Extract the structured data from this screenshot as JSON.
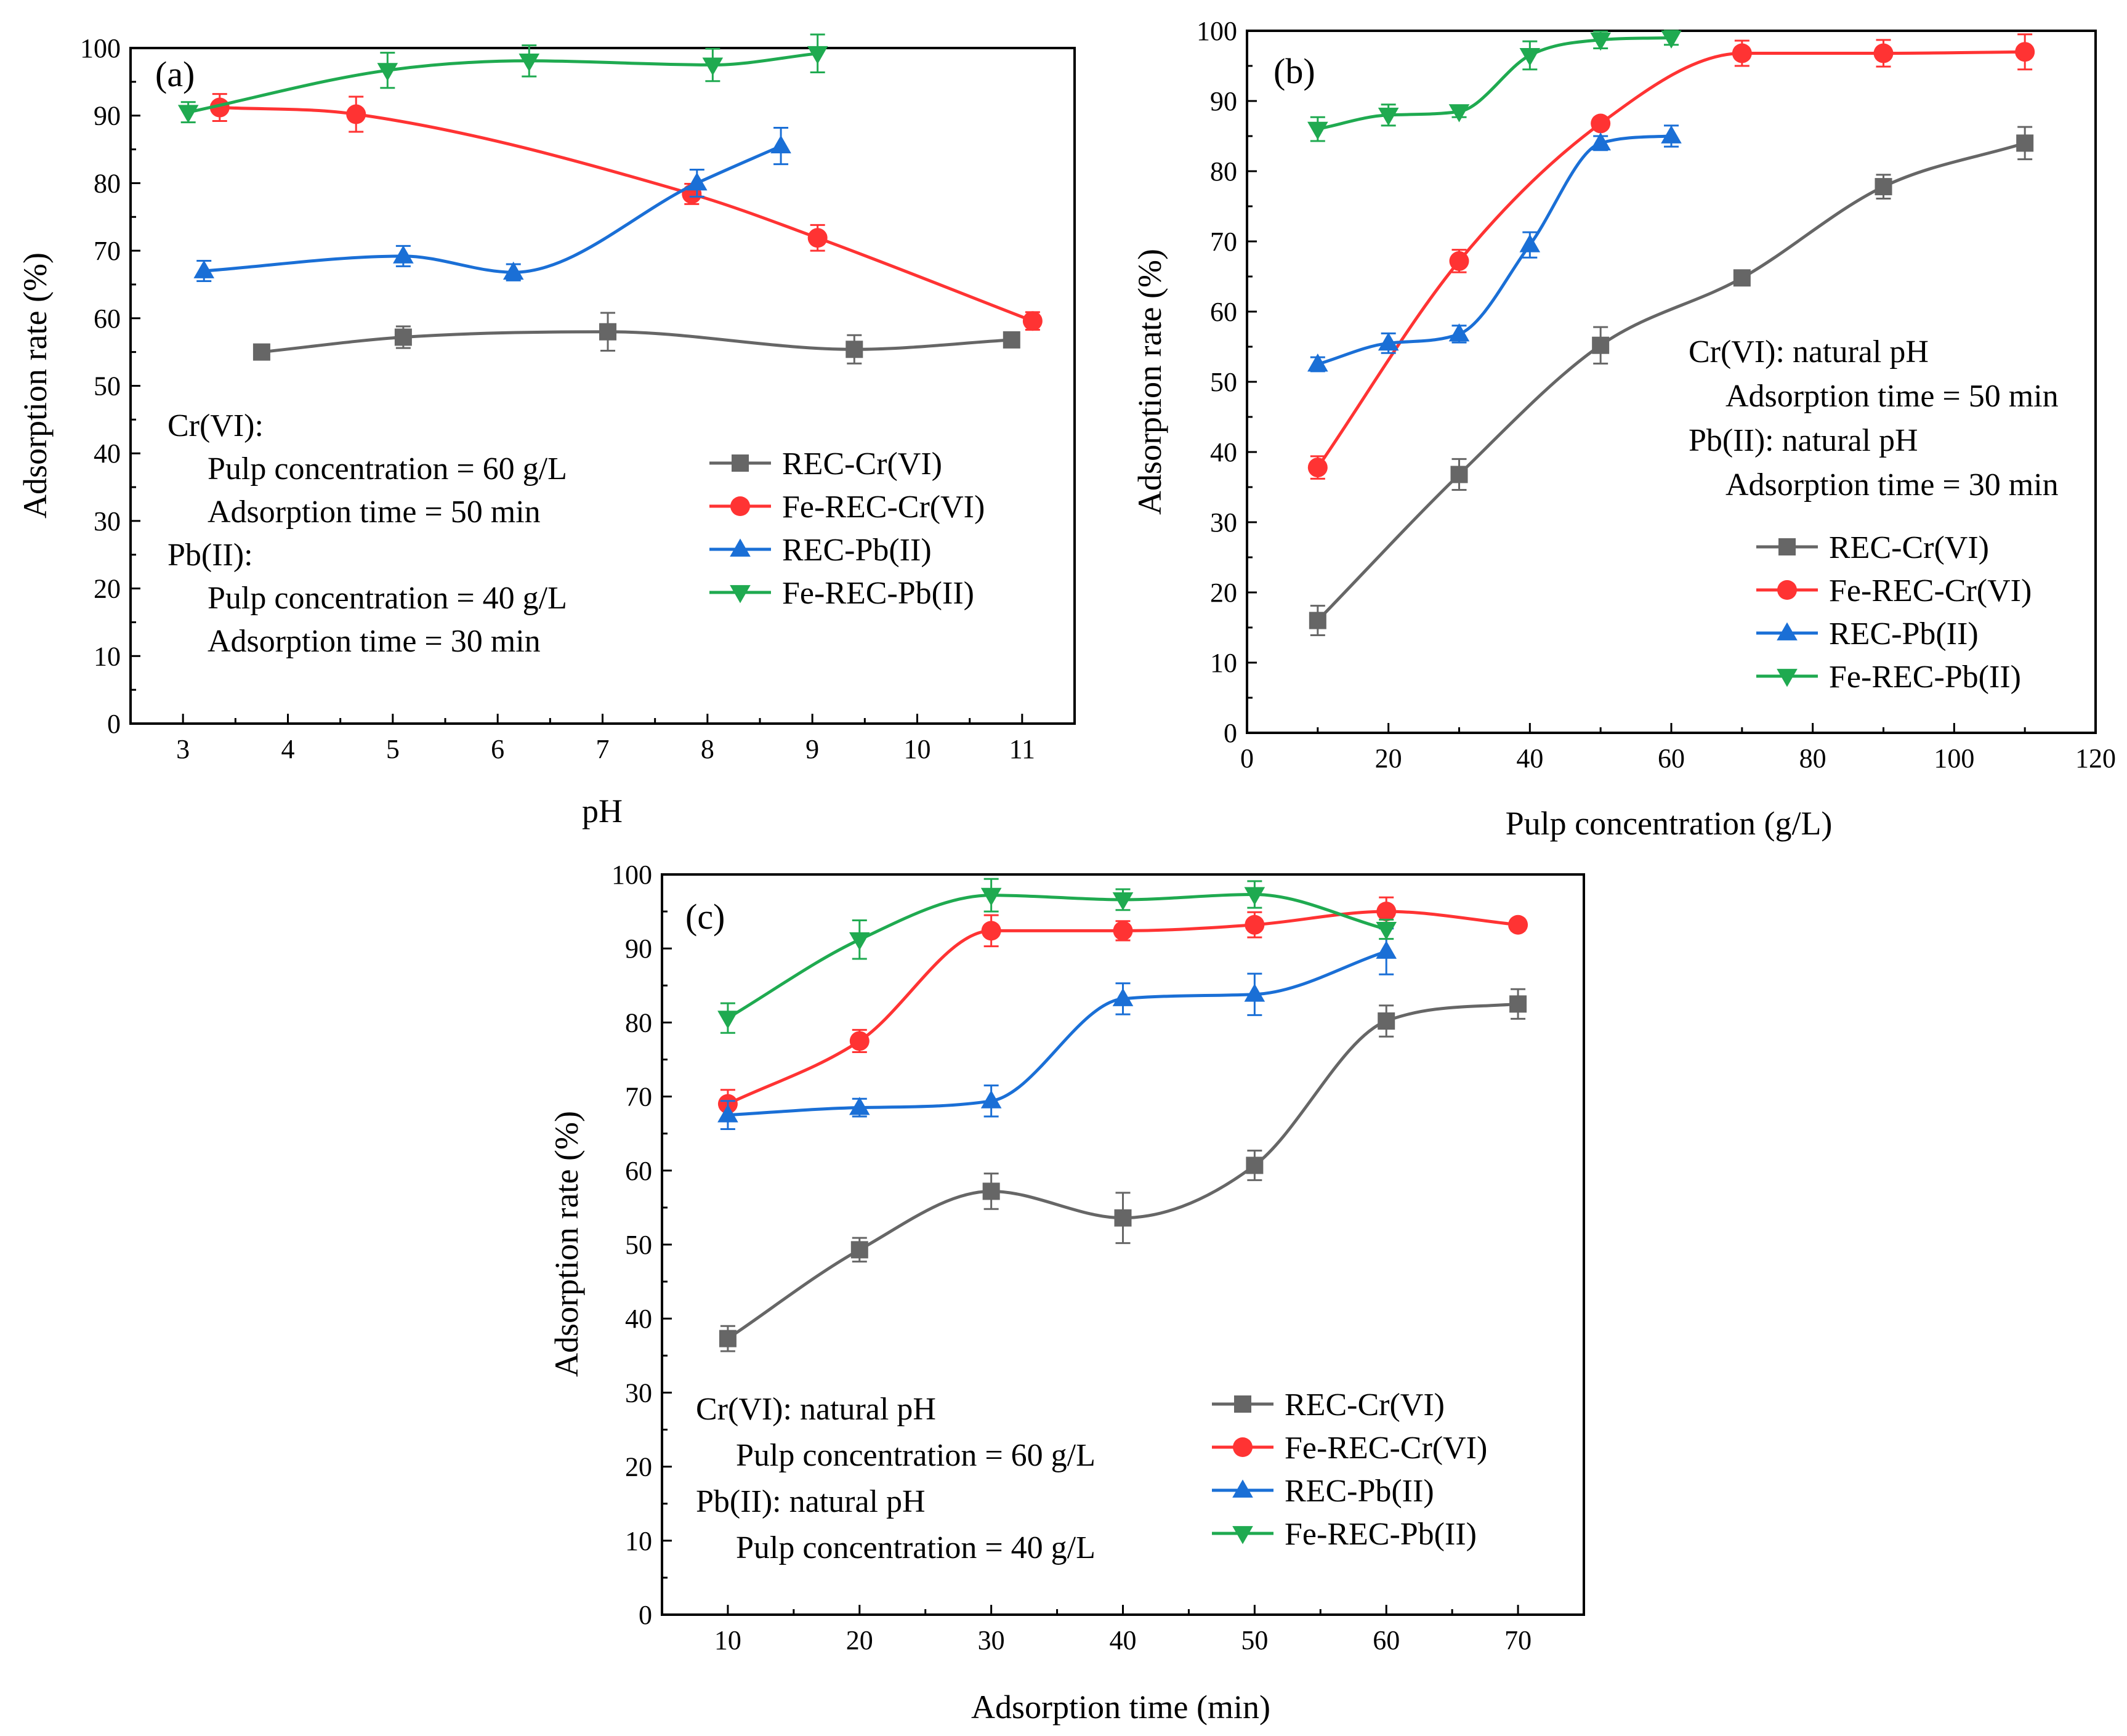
{
  "chart_data": [
    {
      "type": "line",
      "panel_label": "(a)",
      "xlabel": "pH",
      "ylabel": "Adsorption rate (%)",
      "xlim": [
        2.5,
        11.5
      ],
      "ylim": [
        0,
        100
      ],
      "xticks": [
        3,
        4,
        5,
        6,
        7,
        8,
        9,
        10,
        11
      ],
      "yticks": [
        0,
        10,
        20,
        30,
        40,
        50,
        60,
        70,
        80,
        90,
        100
      ],
      "legend_position": "center-right",
      "annotations": [
        "Cr(VI):",
        "Pulp concentration = 60 g/L",
        "Adsorption time = 50 min",
        "Pb(II):",
        "Pulp concentration = 40 g/L",
        "Adsorption time = 30 min"
      ],
      "series": [
        {
          "name": "REC-Cr(VI)",
          "color": "#666666",
          "marker": "square",
          "x": [
            3.75,
            5.1,
            7.05,
            9.4,
            10.9
          ],
          "y": [
            55,
            57.2,
            58,
            55.4,
            56.8
          ],
          "err": [
            0.6,
            1.6,
            2.8,
            2.1,
            0.5
          ]
        },
        {
          "name": "Fe-REC-Cr(VI)",
          "color": "#ff3333",
          "marker": "circle",
          "x": [
            3.35,
            4.65,
            7.85,
            9.05,
            11.1
          ],
          "y": [
            91.2,
            90.2,
            78.4,
            71.9,
            59.6
          ],
          "err": [
            2,
            2.6,
            1.5,
            1.9,
            1.3
          ]
        },
        {
          "name": "REC-Pb(II)",
          "color": "#1a6fd6",
          "marker": "triangle-up",
          "x": [
            3.2,
            5.1,
            6.15,
            7.9,
            8.7
          ],
          "y": [
            67,
            69.2,
            66.8,
            80,
            85.5
          ],
          "err": [
            1.5,
            1.5,
            1.2,
            2,
            2.7
          ]
        },
        {
          "name": "Fe-REC-Pb(II)",
          "color": "#1faa50",
          "marker": "triangle-down",
          "x": [
            3.05,
            4.95,
            6.3,
            8.05,
            9.05
          ],
          "y": [
            90.5,
            96.7,
            98.1,
            97.5,
            99.2
          ],
          "err": [
            1.5,
            2.6,
            2.3,
            2.4,
            2.8
          ]
        }
      ]
    },
    {
      "type": "line",
      "panel_label": "(b)",
      "xlabel": "Pulp concentration (g/L)",
      "ylabel": "Adsorption rate (%)",
      "xlim": [
        0,
        120
      ],
      "ylim": [
        0,
        100
      ],
      "xticks": [
        0,
        20,
        40,
        60,
        80,
        100,
        120
      ],
      "yticks": [
        0,
        10,
        20,
        30,
        40,
        50,
        60,
        70,
        80,
        90,
        100
      ],
      "legend_position": "bottom-right",
      "annotations": [
        "Cr(VI):    natural pH",
        "Adsorption time = 50 min",
        "Pb(II):     natural pH",
        "Adsorption time = 30 min"
      ],
      "series": [
        {
          "name": "REC-Cr(VI)",
          "color": "#666666",
          "marker": "square",
          "x": [
            10,
            30,
            50,
            70,
            90,
            110
          ],
          "y": [
            16,
            36.8,
            55.2,
            64.8,
            77.8,
            84
          ],
          "err": [
            2.1,
            2.2,
            2.6,
            1,
            1.7,
            2.3
          ]
        },
        {
          "name": "Fe-REC-Cr(VI)",
          "color": "#ff3333",
          "marker": "circle",
          "x": [
            10,
            30,
            50,
            70,
            90,
            110
          ],
          "y": [
            37.8,
            67.2,
            86.8,
            96.8,
            96.8,
            97
          ],
          "err": [
            1.6,
            1.6,
            0.7,
            1.8,
            1.9,
            2.5
          ]
        },
        {
          "name": "REC-Pb(II)",
          "color": "#1a6fd6",
          "marker": "triangle-up",
          "x": [
            10,
            20,
            30,
            40,
            50,
            60
          ],
          "y": [
            52.5,
            55.5,
            56.8,
            69.5,
            84,
            85
          ],
          "err": [
            1,
            1.4,
            1.2,
            1.8,
            1,
            1.5
          ]
        },
        {
          "name": "Fe-REC-Pb(II)",
          "color": "#1faa50",
          "marker": "triangle-down",
          "x": [
            10,
            20,
            30,
            40,
            50,
            60
          ],
          "y": [
            86,
            88,
            88.5,
            96.5,
            98.7,
            99
          ],
          "err": [
            1.7,
            1.5,
            0.8,
            2,
            1.2,
            1
          ]
        }
      ]
    },
    {
      "type": "line",
      "panel_label": "(c)",
      "xlabel": "Adsorption time (min)",
      "ylabel": "Adsorption rate (%)",
      "xlim": [
        5,
        75
      ],
      "ylim": [
        0,
        100
      ],
      "xticks": [
        10,
        20,
        30,
        40,
        50,
        60,
        70
      ],
      "yticks": [
        0,
        10,
        20,
        30,
        40,
        50,
        60,
        70,
        80,
        90,
        100
      ],
      "legend_position": "bottom-right",
      "annotations": [
        "Cr(VI):    natural pH",
        "Pulp concentration = 60 g/L",
        "Pb(II):    natural pH",
        "Pulp concentration = 40 g/L"
      ],
      "series": [
        {
          "name": "REC-Cr(VI)",
          "color": "#666666",
          "marker": "square",
          "x": [
            10,
            20,
            30,
            40,
            50,
            60,
            70
          ],
          "y": [
            37.3,
            49.3,
            57.2,
            53.6,
            60.7,
            80.2,
            82.5
          ],
          "err": [
            1.7,
            1.6,
            2.4,
            3.4,
            2,
            2.1,
            2
          ]
        },
        {
          "name": "Fe-REC-Cr(VI)",
          "color": "#ff3333",
          "marker": "circle",
          "x": [
            10,
            20,
            30,
            40,
            50,
            60,
            70
          ],
          "y": [
            69,
            77.5,
            92.4,
            92.4,
            93.2,
            95,
            93.2
          ],
          "err": [
            1.9,
            1.5,
            2.1,
            1.3,
            1.7,
            1.9,
            0.8
          ]
        },
        {
          "name": "REC-Pb(II)",
          "color": "#1a6fd6",
          "marker": "triangle-up",
          "x": [
            10,
            20,
            30,
            40,
            50,
            60
          ],
          "y": [
            67.5,
            68.5,
            69.4,
            83.2,
            83.8,
            89.6
          ],
          "err": [
            1.9,
            1.2,
            2.1,
            2.1,
            2.8,
            3.1
          ]
        },
        {
          "name": "Fe-REC-Pb(II)",
          "color": "#1faa50",
          "marker": "triangle-down",
          "x": [
            10,
            20,
            30,
            40,
            50,
            60
          ],
          "y": [
            80.6,
            91.2,
            97.2,
            96.6,
            97.3,
            92.6
          ],
          "err": [
            2,
            2.6,
            2.2,
            1.4,
            1.8,
            1.3
          ]
        }
      ]
    }
  ]
}
